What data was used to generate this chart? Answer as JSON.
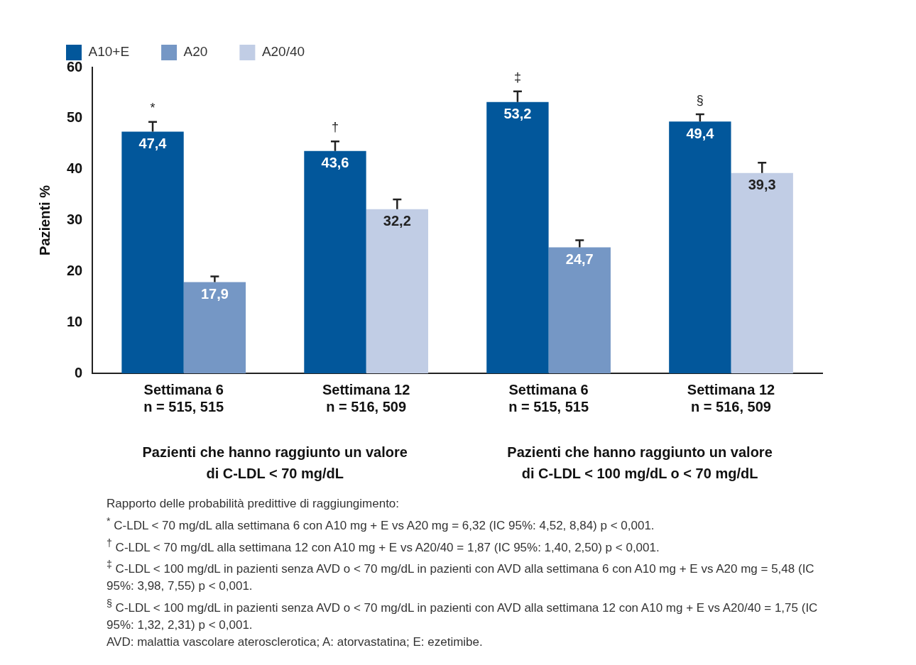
{
  "chart_data": {
    "type": "bar",
    "ylabel": "Pazienti %",
    "categories": [
      "Settimana 6\nn = 515, 515",
      "Settimana 12\nn = 516, 509",
      "Settimana 6\nn = 515, 515",
      "Settimana 12\nn = 516, 509"
    ],
    "series": [
      {
        "name": "A10+E",
        "color": "#02579b",
        "values": [
          47.4,
          43.6,
          53.2,
          49.4
        ],
        "errors": [
          [
            47.4,
            49.3
          ],
          [
            43.6,
            45.5
          ],
          [
            53.2,
            55.3
          ],
          [
            49.4,
            50.8
          ]
        ],
        "value_labels": [
          "47,4",
          "43,6",
          "53,2",
          "49,4"
        ]
      },
      {
        "name": "A20",
        "color": "#7597c5",
        "values": [
          17.9,
          null,
          24.7,
          null
        ],
        "errors": [
          [
            17.9,
            19.0
          ],
          null,
          [
            24.7,
            26.1
          ],
          null
        ],
        "value_labels": [
          "17,9",
          null,
          "24,7",
          null
        ]
      },
      {
        "name": "A20/40",
        "color": "#c1cde5",
        "values": [
          null,
          32.2,
          null,
          39.3
        ],
        "errors": [
          null,
          [
            32.2,
            34.1
          ],
          null,
          [
            39.3,
            41.3
          ]
        ],
        "value_labels": [
          null,
          "32,2",
          null,
          "39,3"
        ]
      }
    ],
    "ylim": [
      0,
      60
    ],
    "yticks": [
      0,
      10,
      20,
      30,
      40,
      50,
      60
    ],
    "legend": "top left",
    "annotations": [
      "*",
      "†",
      "‡",
      "§",
      "Pazienti che hanno raggiunto un valore\ndi C-LDL < 70 mg/dL",
      "Pazienti che hanno raggiunto un valore\ndi C-LDL < 100 mg/dL o < 70 mg/dL",
      "Rapporto delle probabilità predittive di raggiungimento:",
      "$^{*}$ C-LDL < 70 mg/dL alla settimana 6 con A10 mg + E vs A20 mg = 6,32 (IC 95%: 4,52, 8,84) p < 0,001.",
      "$^{†}$ C-LDL < 70 mg/dL alla settimana 12 con A10 mg + E vs A20/40 = 1,87 (IC 95%: 1,40, 2,50) p < 0,001.",
      "$^{‡}$ C-LDL < 100 mg/dL in pazienti senza AVD o < 70 mg/dL in pazienti con AVD alla settimana 6 con A10 mg + E vs A20 mg = 5,48 (IC 95%: 3,98, 7,55) p < 0,001.",
      "$^{§}$ C-LDL < 100 mg/dL in pazienti senza AVD o < 70 mg/dL in pazienti con AVD alla settimana 12 con A10 mg + E vs A20/40 = 1,75 (IC 95%: 1,32, 2,31) p < 0,001.",
      "AVD: malattia vascolare aterosclerotica; A: atorvastatina; E: ezetimibe."
    ]
  }
}
